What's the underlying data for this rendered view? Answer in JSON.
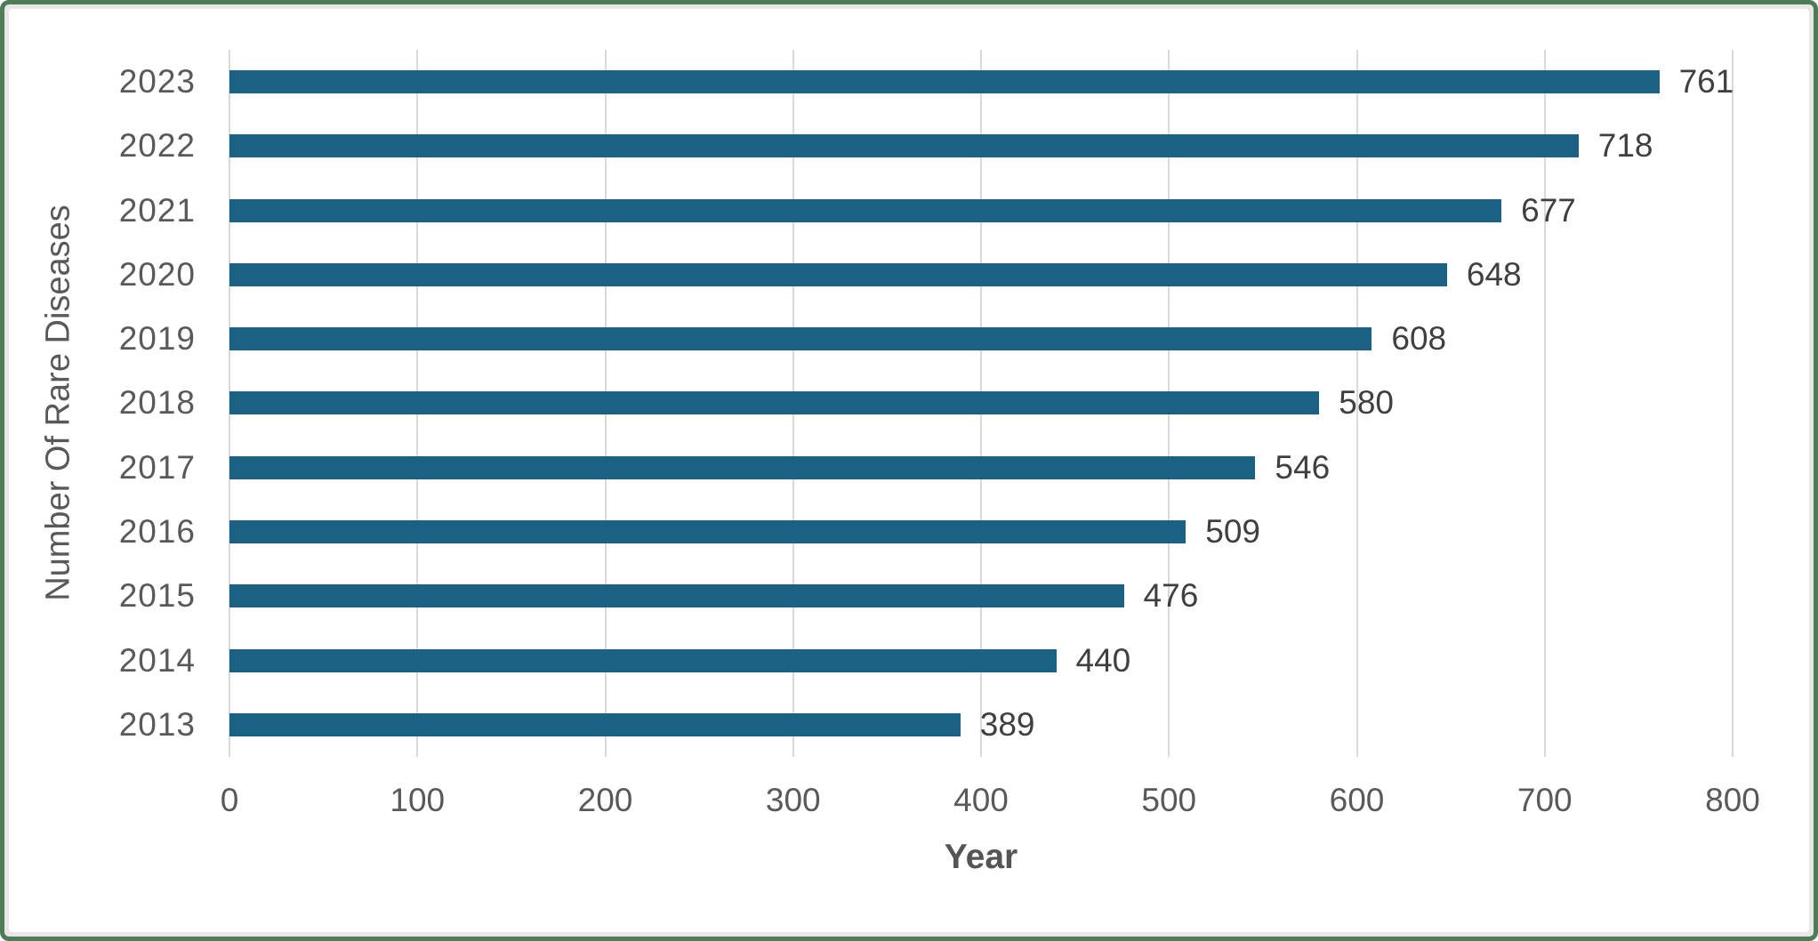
{
  "frame": {
    "border_color": "#4F7B58",
    "inset_color": "#E7E7E7",
    "background": "#FFFFFF"
  },
  "chart_data": {
    "type": "bar",
    "orientation": "horizontal",
    "title": "",
    "categories": [
      "2023",
      "2022",
      "2021",
      "2020",
      "2019",
      "2018",
      "2017",
      "2016",
      "2015",
      "2014",
      "2013"
    ],
    "values": [
      761,
      718,
      677,
      648,
      608,
      580,
      546,
      509,
      476,
      440,
      389
    ],
    "xlabel": "Year",
    "ylabel": "Number Of Rare Diseases",
    "xlim": [
      0,
      800
    ],
    "x_ticks": [
      0,
      100,
      200,
      300,
      400,
      500,
      600,
      700,
      800
    ],
    "grid": "vertical gridlines on",
    "legend": "none",
    "data_labels": "outside end of bars",
    "bar_color": "#1B6183",
    "gridline_color": "#D9D9D9",
    "axis_text_color": "#595959",
    "value_label_color": "#3F3F3F",
    "axis_title_color": "#555555"
  }
}
